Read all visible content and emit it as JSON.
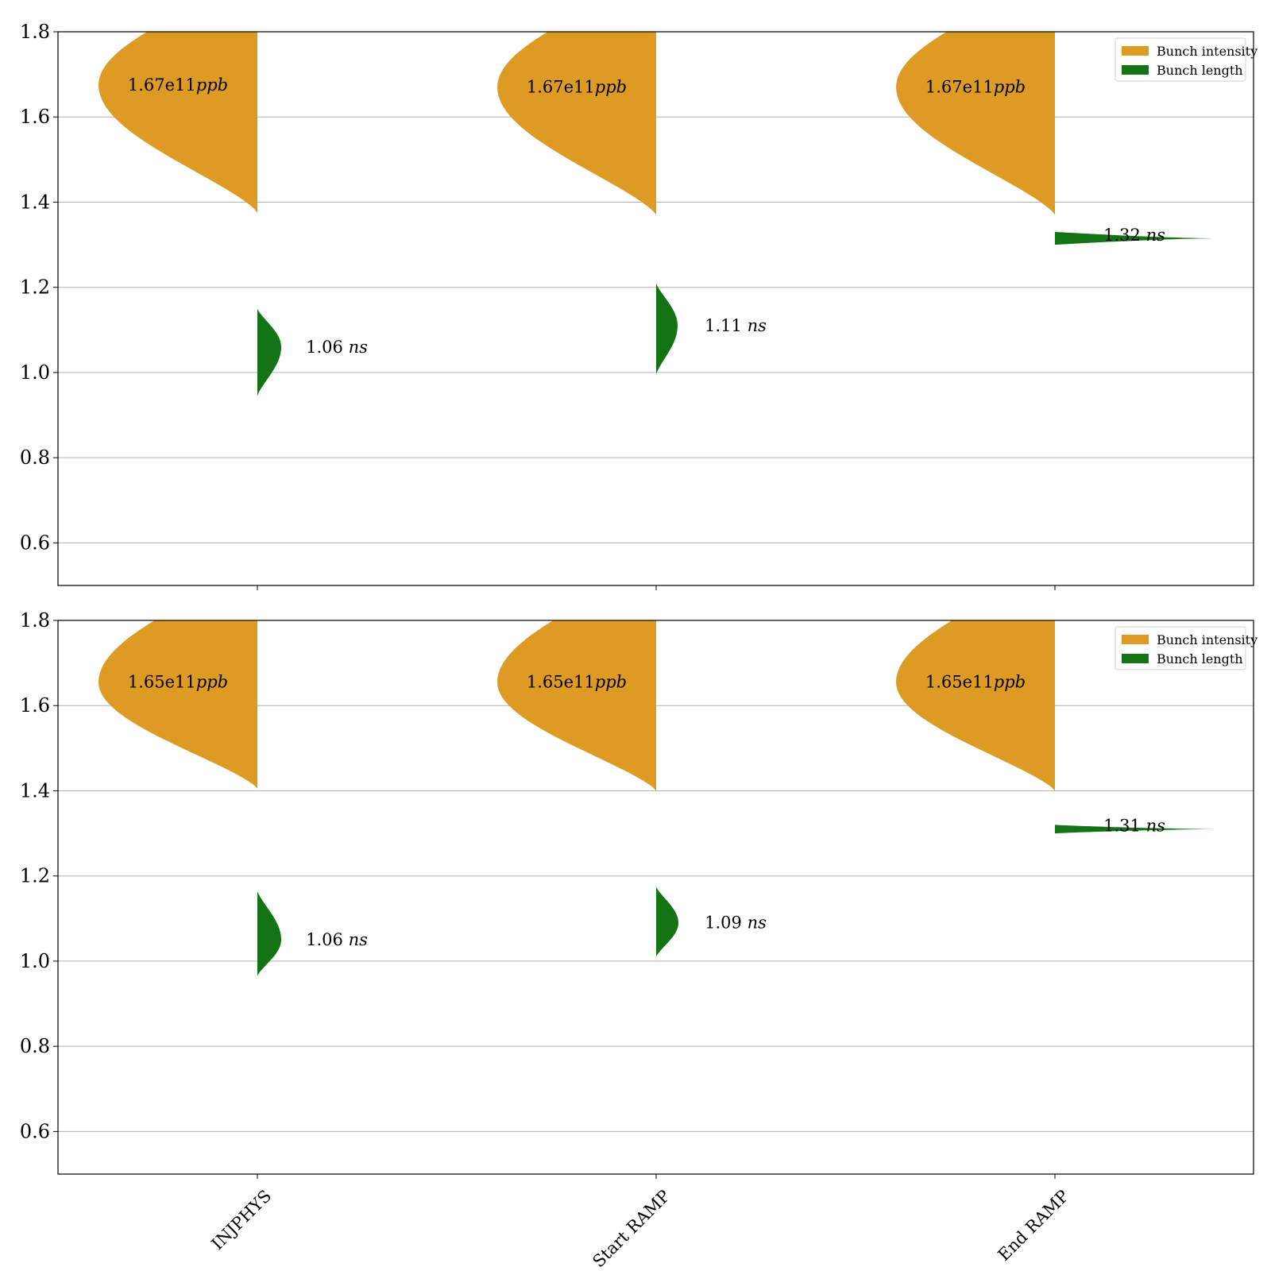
{
  "chart_data": [
    {
      "type": "violin",
      "categories": [
        "INJPHYS",
        "Start RAMP",
        "End RAMP"
      ],
      "ylim": [
        0.5,
        1.8
      ],
      "yticks": [
        0.6,
        0.8,
        1.0,
        1.2,
        1.4,
        1.6,
        1.8
      ],
      "grid": "y",
      "legend": {
        "placement": "top-right",
        "entries": [
          "Bunch intensity",
          "Bunch length"
        ]
      },
      "colors": {
        "intensity": "#dd9b23",
        "length": "#147314"
      },
      "series": [
        {
          "name": "Bunch intensity",
          "side": "left",
          "distributions": [
            {
              "min": 1.375,
              "max": 1.8,
              "peak": 1.675,
              "median_label": "1.67e11ppb",
              "label_number": "1.67e11",
              "label_unit": "ppb"
            },
            {
              "min": 1.37,
              "max": 1.8,
              "peak": 1.67,
              "median_label": "1.67e11ppb",
              "label_number": "1.67e11",
              "label_unit": "ppb"
            },
            {
              "min": 1.37,
              "max": 1.8,
              "peak": 1.67,
              "median_label": "1.67e11ppb",
              "label_number": "1.67e11",
              "label_unit": "ppb"
            }
          ]
        },
        {
          "name": "Bunch length",
          "side": "right",
          "distributions": [
            {
              "min": 0.945,
              "max": 1.15,
              "peak": 1.06,
              "median_label": "1.06 ns",
              "label_number": "1.06",
              "label_unit": "ns"
            },
            {
              "min": 0.995,
              "max": 1.21,
              "peak": 1.11,
              "median_label": "1.11 ns",
              "label_number": "1.11",
              "label_unit": "ns"
            },
            {
              "min": 1.3,
              "max": 1.33,
              "peak": 1.315,
              "median_label": "1.32 ns",
              "label_number": "1.32",
              "label_unit": "ns"
            }
          ]
        }
      ]
    },
    {
      "type": "violin",
      "categories": [
        "INJPHYS",
        "Start RAMP",
        "End RAMP"
      ],
      "ylim": [
        0.5,
        1.8
      ],
      "yticks": [
        0.6,
        0.8,
        1.0,
        1.2,
        1.4,
        1.6,
        1.8
      ],
      "grid": "y",
      "legend": {
        "placement": "top-right",
        "entries": [
          "Bunch intensity",
          "Bunch length"
        ]
      },
      "colors": {
        "intensity": "#dd9b23",
        "length": "#147314"
      },
      "series": [
        {
          "name": "Bunch intensity",
          "side": "left",
          "distributions": [
            {
              "min": 1.405,
              "max": 1.8,
              "peak": 1.655,
              "median_label": "1.65e11ppb",
              "label_number": "1.65e11",
              "label_unit": "ppb"
            },
            {
              "min": 1.4,
              "max": 1.8,
              "peak": 1.655,
              "median_label": "1.65e11ppb",
              "label_number": "1.65e11",
              "label_unit": "ppb"
            },
            {
              "min": 1.4,
              "max": 1.8,
              "peak": 1.655,
              "median_label": "1.65e11ppb",
              "label_number": "1.65e11",
              "label_unit": "ppb"
            }
          ]
        },
        {
          "name": "Bunch length",
          "side": "right",
          "distributions": [
            {
              "min": 0.965,
              "max": 1.165,
              "peak": 1.05,
              "median_label": "1.06 ns",
              "label_number": "1.06",
              "label_unit": "ns"
            },
            {
              "min": 1.01,
              "max": 1.175,
              "peak": 1.09,
              "median_label": "1.09 ns",
              "label_number": "1.09",
              "label_unit": "ns"
            },
            {
              "min": 1.3,
              "max": 1.32,
              "peak": 1.31,
              "median_label": "1.31 ns",
              "label_number": "1.31",
              "label_unit": "ns"
            }
          ]
        }
      ]
    }
  ]
}
